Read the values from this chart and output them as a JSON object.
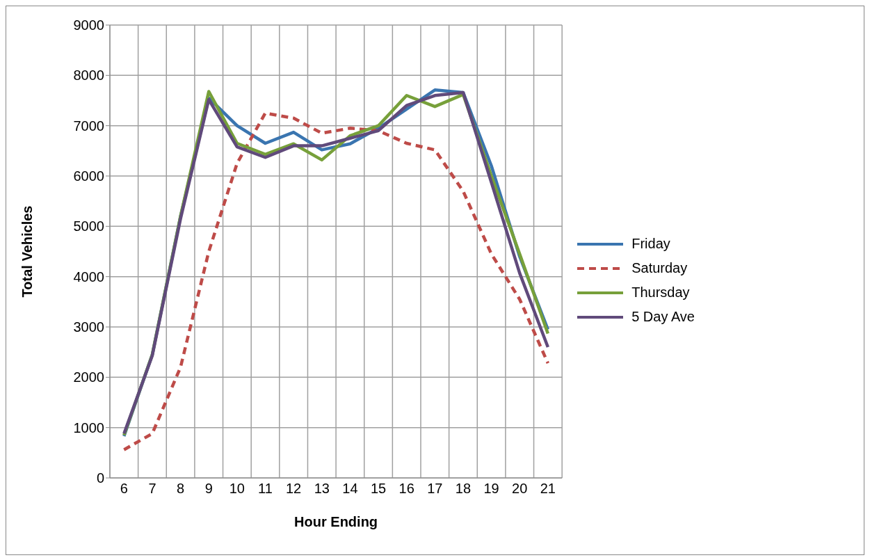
{
  "chart_data": {
    "type": "line",
    "xlabel": "Hour Ending",
    "ylabel": "Total Vehicles",
    "categories": [
      "6",
      "7",
      "8",
      "9",
      "10",
      "11",
      "12",
      "13",
      "14",
      "15",
      "16",
      "17",
      "18",
      "19",
      "20",
      "21"
    ],
    "ylim": [
      0,
      9000
    ],
    "yticks": [
      0,
      1000,
      2000,
      3000,
      4000,
      5000,
      6000,
      7000,
      8000,
      9000
    ],
    "grid": true,
    "legend": "right",
    "marker": "none",
    "series": [
      {
        "name": "Friday",
        "color": "#3a75b0",
        "line_style": "solid",
        "values": [
          830,
          2450,
          5200,
          7550,
          7000,
          6650,
          6870,
          6520,
          6640,
          6950,
          7330,
          7710,
          7660,
          6200,
          4400,
          2950
        ]
      },
      {
        "name": "Saturday",
        "color": "#be4b48",
        "line_style": "dashed",
        "values": [
          560,
          880,
          2200,
          4500,
          6250,
          7250,
          7150,
          6850,
          6950,
          6900,
          6650,
          6520,
          5700,
          4450,
          3550,
          2280
        ]
      },
      {
        "name": "Thursday",
        "color": "#77a03a",
        "line_style": "solid",
        "values": [
          850,
          2450,
          5200,
          7680,
          6650,
          6430,
          6640,
          6320,
          6800,
          7000,
          7600,
          7380,
          7620,
          6000,
          4450,
          2870
        ]
      },
      {
        "name": "5 Day Ave",
        "color": "#604a7b",
        "line_style": "solid",
        "values": [
          880,
          2430,
          5150,
          7520,
          6580,
          6370,
          6600,
          6600,
          6750,
          6900,
          7400,
          7600,
          7660,
          5870,
          4070,
          2600
        ]
      }
    ]
  }
}
